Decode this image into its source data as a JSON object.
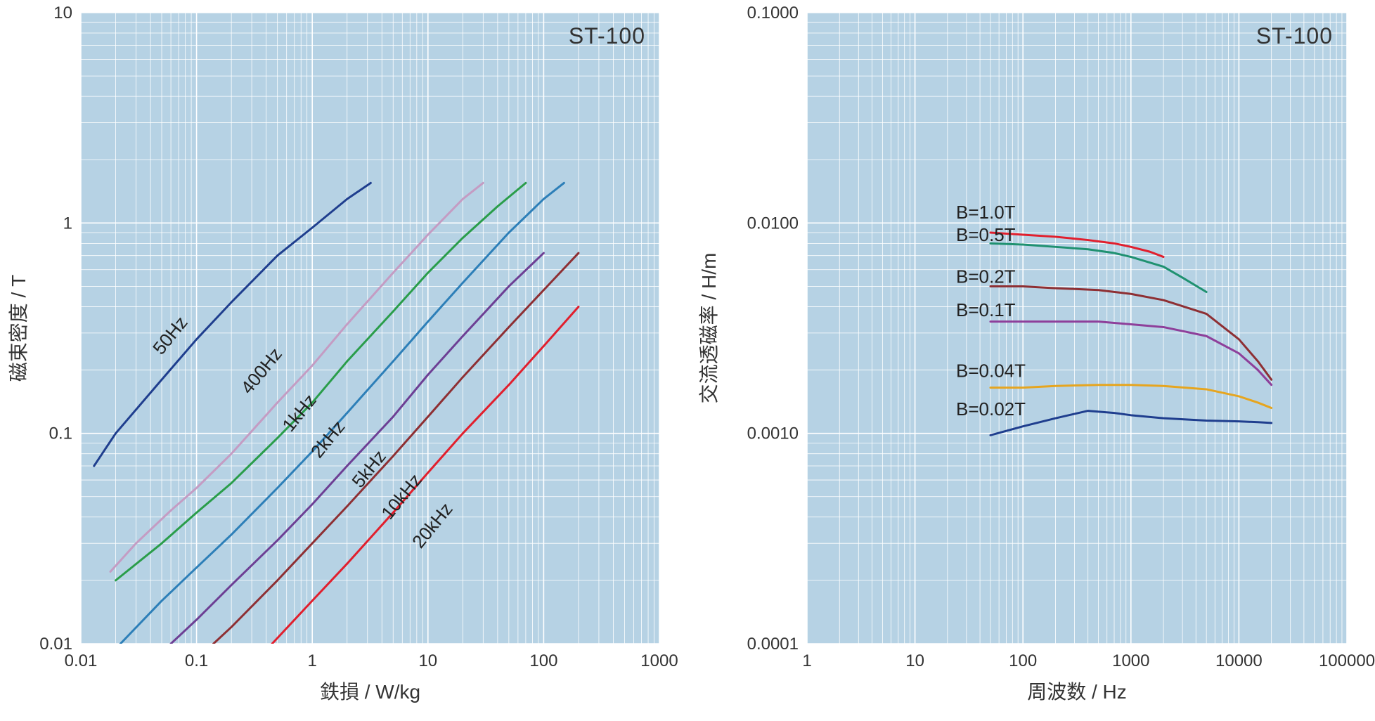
{
  "left_chart": {
    "type": "line_loglog",
    "product_label": "ST-100",
    "xlabel": "鉄損   /   W/kg",
    "ylabel": "磁束密度   /   T",
    "xlim": [
      0.01,
      1000
    ],
    "ylim": [
      0.01,
      10
    ],
    "xticks": [
      0.01,
      0.1,
      1,
      10,
      100,
      1000
    ],
    "xtick_labels": [
      "0.01",
      "0.1",
      "1",
      "10",
      "100",
      "1000"
    ],
    "yticks": [
      0.01,
      0.1,
      1,
      10
    ],
    "ytick_labels": [
      "0.01",
      "0.1",
      "1",
      "10"
    ],
    "background_color": "#b6d2e4",
    "grid_color": "#ffffff",
    "grid_width_major": 1.6,
    "grid_width_minor": 0.8,
    "plot_font_size": 26,
    "tick_font_size": 24,
    "axis_font_size": 28,
    "title_font_size": 32,
    "line_width": 3,
    "series": [
      {
        "label": "50Hz",
        "color": "#1f3e8e",
        "label_xy": [
          0.065,
          0.28
        ],
        "data": [
          [
            0.013,
            0.07
          ],
          [
            0.02,
            0.1
          ],
          [
            0.05,
            0.18
          ],
          [
            0.1,
            0.28
          ],
          [
            0.2,
            0.42
          ],
          [
            0.5,
            0.7
          ],
          [
            1.0,
            0.95
          ],
          [
            2.0,
            1.3
          ],
          [
            3.2,
            1.55
          ]
        ]
      },
      {
        "label": "400Hz",
        "color": "#c49cc3",
        "label_xy": [
          0.4,
          0.19
        ],
        "data": [
          [
            0.018,
            0.022
          ],
          [
            0.03,
            0.03
          ],
          [
            0.06,
            0.043
          ],
          [
            0.1,
            0.055
          ],
          [
            0.2,
            0.08
          ],
          [
            0.5,
            0.14
          ],
          [
            1.0,
            0.21
          ],
          [
            2.0,
            0.33
          ],
          [
            5.0,
            0.58
          ],
          [
            10,
            0.88
          ],
          [
            20,
            1.3
          ],
          [
            30,
            1.55
          ]
        ]
      },
      {
        "label": "1kHz",
        "color": "#2a9d4a",
        "label_xy": [
          0.85,
          0.12
        ],
        "data": [
          [
            0.02,
            0.02
          ],
          [
            0.05,
            0.03
          ],
          [
            0.1,
            0.042
          ],
          [
            0.2,
            0.058
          ],
          [
            0.5,
            0.095
          ],
          [
            1.0,
            0.14
          ],
          [
            2.0,
            0.22
          ],
          [
            5.0,
            0.38
          ],
          [
            10,
            0.58
          ],
          [
            20,
            0.85
          ],
          [
            40,
            1.2
          ],
          [
            70,
            1.55
          ]
        ]
      },
      {
        "label": "2kHz",
        "color": "#2d7fb8",
        "label_xy": [
          1.5,
          0.09
        ],
        "data": [
          [
            0.022,
            0.01
          ],
          [
            0.05,
            0.016
          ],
          [
            0.1,
            0.023
          ],
          [
            0.2,
            0.033
          ],
          [
            0.5,
            0.055
          ],
          [
            1.0,
            0.082
          ],
          [
            2.0,
            0.125
          ],
          [
            5.0,
            0.22
          ],
          [
            10,
            0.34
          ],
          [
            20,
            0.52
          ],
          [
            50,
            0.9
          ],
          [
            100,
            1.3
          ],
          [
            150,
            1.55
          ]
        ]
      },
      {
        "label": "5kHz",
        "color": "#6d3f94",
        "label_xy": [
          3.4,
          0.065
        ],
        "data": [
          [
            0.06,
            0.01
          ],
          [
            0.1,
            0.013
          ],
          [
            0.2,
            0.019
          ],
          [
            0.5,
            0.031
          ],
          [
            1.0,
            0.046
          ],
          [
            2.0,
            0.07
          ],
          [
            5.0,
            0.12
          ],
          [
            10,
            0.19
          ],
          [
            20,
            0.29
          ],
          [
            50,
            0.5
          ],
          [
            100,
            0.72
          ]
        ]
      },
      {
        "label": "10kHz",
        "color": "#8e2f33",
        "label_xy": [
          6.5,
          0.048
        ],
        "data": [
          [
            0.14,
            0.01
          ],
          [
            0.2,
            0.012
          ],
          [
            0.5,
            0.02
          ],
          [
            1.0,
            0.03
          ],
          [
            2.0,
            0.045
          ],
          [
            5.0,
            0.078
          ],
          [
            10,
            0.12
          ],
          [
            20,
            0.185
          ],
          [
            50,
            0.32
          ],
          [
            100,
            0.48
          ],
          [
            200,
            0.72
          ]
        ]
      },
      {
        "label": "20kHz",
        "color": "#e11f2d",
        "label_xy": [
          12,
          0.035
        ],
        "data": [
          [
            0.45,
            0.01
          ],
          [
            1.0,
            0.016
          ],
          [
            2.0,
            0.024
          ],
          [
            5.0,
            0.042
          ],
          [
            10,
            0.065
          ],
          [
            20,
            0.1
          ],
          [
            50,
            0.17
          ],
          [
            100,
            0.26
          ],
          [
            200,
            0.4
          ]
        ]
      }
    ]
  },
  "right_chart": {
    "type": "line_loglog",
    "product_label": "ST-100",
    "xlabel": "周波数   /   Hz",
    "ylabel": "交流透磁率   /   H/m",
    "xlim": [
      1,
      100000
    ],
    "ylim": [
      0.0001,
      0.1
    ],
    "xticks": [
      1,
      10,
      100,
      1000,
      10000,
      100000
    ],
    "xtick_labels": [
      "1",
      "10",
      "100",
      "1000",
      "10000",
      "100000"
    ],
    "yticks": [
      0.0001,
      0.001,
      0.01,
      0.1
    ],
    "ytick_labels": [
      "0.0001",
      "0.0010",
      "0.0100",
      "0.1000"
    ],
    "background_color": "#b6d2e4",
    "grid_color": "#ffffff",
    "grid_width_major": 1.6,
    "grid_width_minor": 0.8,
    "plot_font_size": 26,
    "tick_font_size": 24,
    "axis_font_size": 28,
    "title_font_size": 32,
    "line_width": 3,
    "series": [
      {
        "label": "B=1.0T",
        "color": "#e11f2d",
        "label_xy": [
          24,
          0.0105
        ],
        "data": [
          [
            50,
            0.009
          ],
          [
            100,
            0.0088
          ],
          [
            200,
            0.0086
          ],
          [
            400,
            0.0083
          ],
          [
            700,
            0.008
          ],
          [
            1000,
            0.0077
          ],
          [
            1500,
            0.0073
          ],
          [
            2000,
            0.0069
          ]
        ]
      },
      {
        "label": "B=0.5T",
        "color": "#1f9170",
        "label_xy": [
          24,
          0.0082
        ],
        "data": [
          [
            50,
            0.008
          ],
          [
            100,
            0.0079
          ],
          [
            200,
            0.0077
          ],
          [
            400,
            0.0075
          ],
          [
            700,
            0.0072
          ],
          [
            1000,
            0.0069
          ],
          [
            2000,
            0.0062
          ],
          [
            3000,
            0.0055
          ],
          [
            5000,
            0.0047
          ]
        ]
      },
      {
        "label": "B=0.2T",
        "color": "#8e2f33",
        "label_xy": [
          24,
          0.0052
        ],
        "data": [
          [
            50,
            0.005
          ],
          [
            100,
            0.005
          ],
          [
            200,
            0.0049
          ],
          [
            500,
            0.0048
          ],
          [
            1000,
            0.0046
          ],
          [
            2000,
            0.0043
          ],
          [
            5000,
            0.0037
          ],
          [
            10000,
            0.0028
          ],
          [
            15000,
            0.0022
          ],
          [
            20000,
            0.0018
          ]
        ]
      },
      {
        "label": "B=0.1T",
        "color": "#8e3f9a",
        "label_xy": [
          24,
          0.0036
        ],
        "data": [
          [
            50,
            0.0034
          ],
          [
            100,
            0.0034
          ],
          [
            200,
            0.0034
          ],
          [
            500,
            0.0034
          ],
          [
            1000,
            0.0033
          ],
          [
            2000,
            0.0032
          ],
          [
            5000,
            0.0029
          ],
          [
            10000,
            0.0024
          ],
          [
            15000,
            0.002
          ],
          [
            20000,
            0.0017
          ]
        ]
      },
      {
        "label": "B=0.04T",
        "color": "#e6a51f",
        "label_xy": [
          24,
          0.00185
        ],
        "data": [
          [
            50,
            0.00165
          ],
          [
            100,
            0.00165
          ],
          [
            200,
            0.00168
          ],
          [
            500,
            0.0017
          ],
          [
            1000,
            0.0017
          ],
          [
            2000,
            0.00168
          ],
          [
            5000,
            0.00162
          ],
          [
            10000,
            0.0015
          ],
          [
            15000,
            0.0014
          ],
          [
            20000,
            0.00132
          ]
        ]
      },
      {
        "label": "B=0.02T",
        "color": "#1f3e8e",
        "label_xy": [
          24,
          0.00122
        ],
        "data": [
          [
            50,
            0.00098
          ],
          [
            100,
            0.00108
          ],
          [
            200,
            0.00118
          ],
          [
            400,
            0.00128
          ],
          [
            700,
            0.00125
          ],
          [
            1000,
            0.00122
          ],
          [
            2000,
            0.00118
          ],
          [
            5000,
            0.00115
          ],
          [
            10000,
            0.00114
          ],
          [
            15000,
            0.00113
          ],
          [
            20000,
            0.00112
          ]
        ]
      }
    ]
  }
}
